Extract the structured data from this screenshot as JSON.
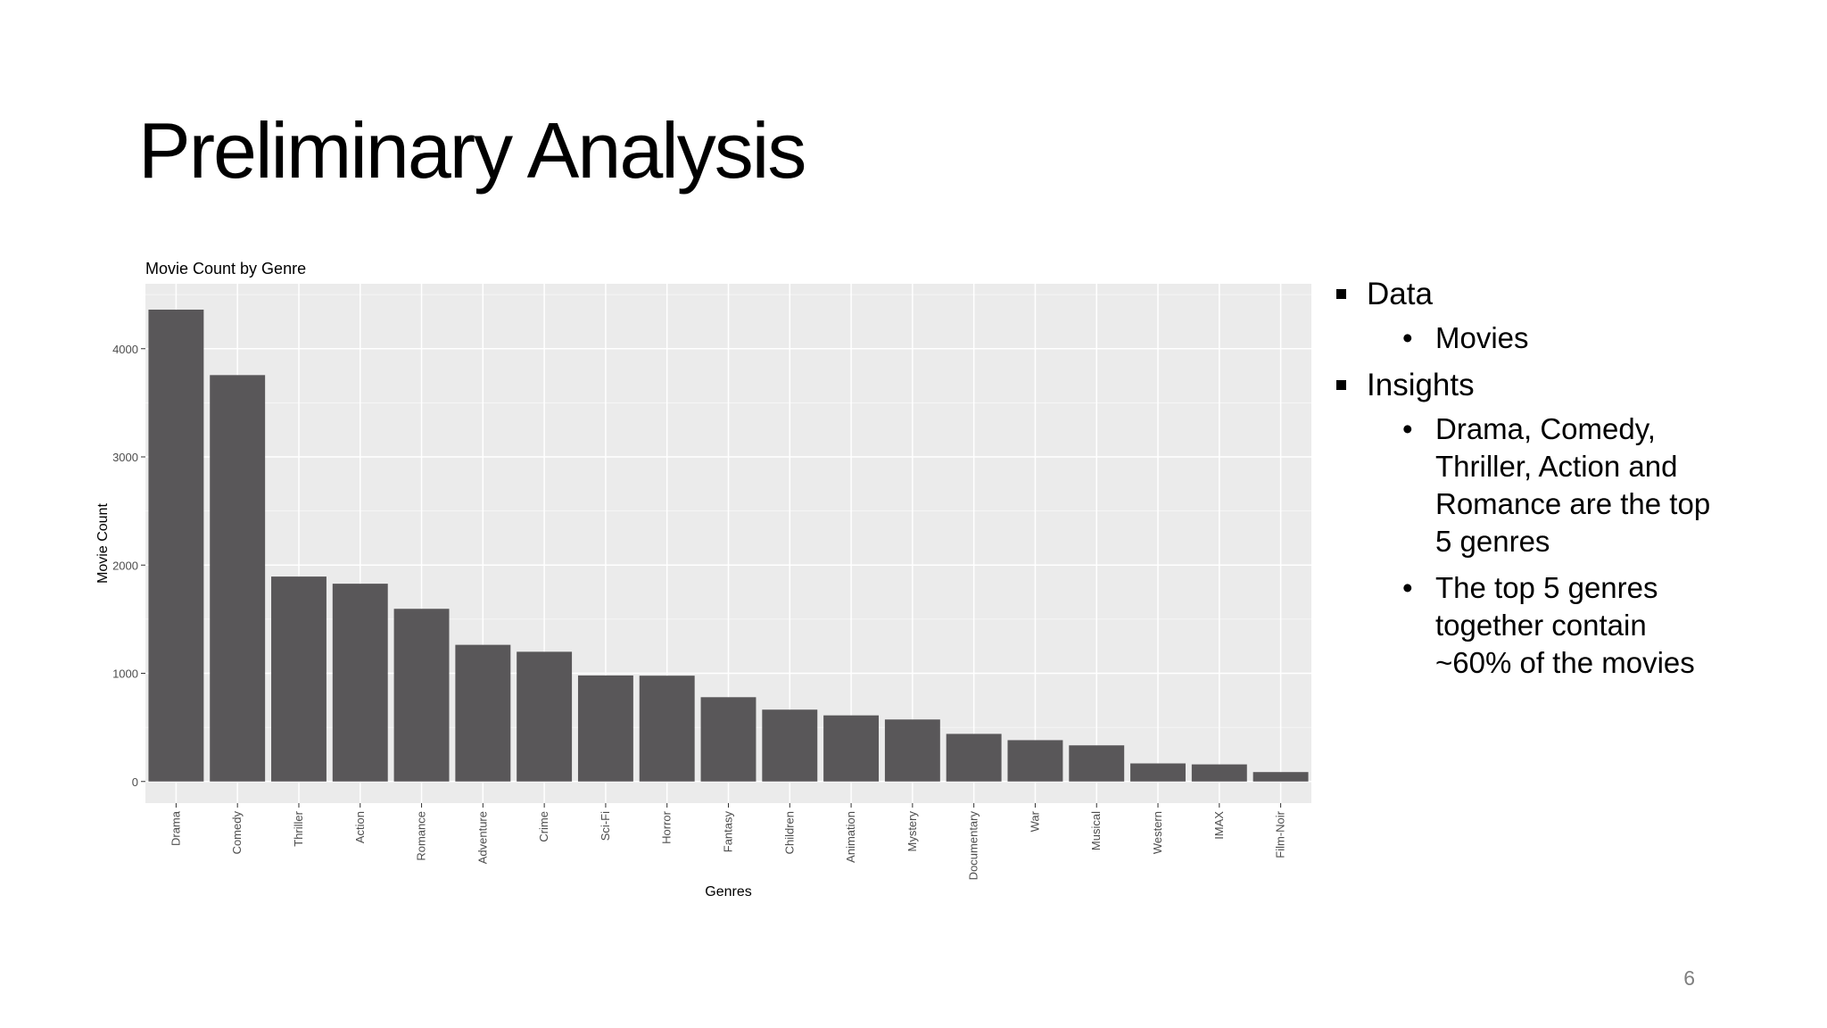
{
  "slide": {
    "title": "Preliminary Analysis",
    "page_number": "6"
  },
  "bullets": {
    "data_heading": "Data",
    "data_items": [
      "Movies"
    ],
    "insights_heading": "Insights",
    "insight_1": "Drama, Comedy, Thriller, Action and Romance are the top 5 genres",
    "insight_2": "The top 5 genres together contain ~60% of the movies"
  },
  "chart_data": {
    "type": "bar",
    "title": "Movie Count by Genre",
    "xlabel": "Genres",
    "ylabel": "Movie Count",
    "categories": [
      "Drama",
      "Comedy",
      "Thriller",
      "Action",
      "Romance",
      "Adventure",
      "Crime",
      "Sci-Fi",
      "Horror",
      "Fantasy",
      "Children",
      "Animation",
      "Mystery",
      "Documentary",
      "War",
      "Musical",
      "Western",
      "IMAX",
      "Film-Noir"
    ],
    "values": [
      4361,
      3756,
      1894,
      1828,
      1596,
      1263,
      1199,
      980,
      978,
      779,
      664,
      611,
      573,
      440,
      382,
      334,
      167,
      158,
      87
    ],
    "yticks": [
      0,
      1000,
      2000,
      3000,
      4000
    ],
    "ylim": [
      -200,
      4600
    ],
    "grid": true,
    "colors": {
      "bar": "#595759",
      "panel": "#ebebeb",
      "grid": "#ffffff",
      "axis_text": "#4d4d4d"
    }
  }
}
